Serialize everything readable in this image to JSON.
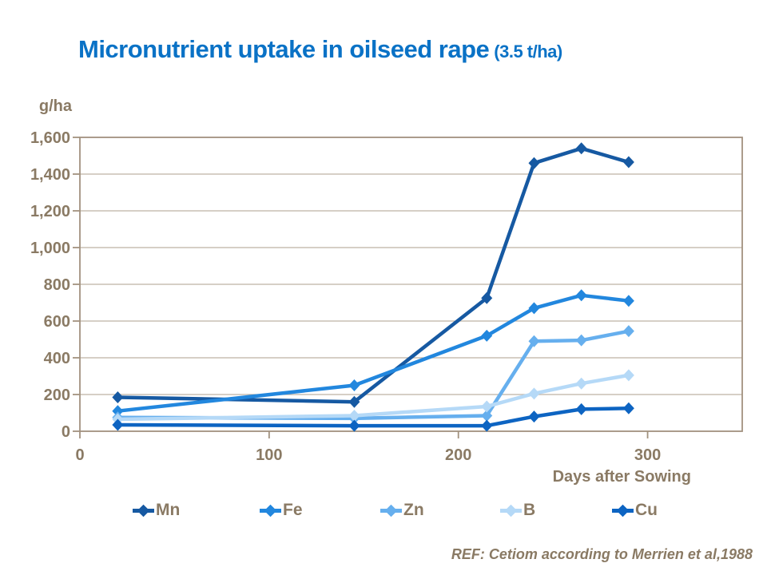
{
  "title": {
    "main": "Micronutrient uptake in oilseed rape",
    "suffix": "(3.5 t/ha)"
  },
  "ref_note": "REF: Cetiom according to Merrien et al,1988",
  "colors": {
    "title_blue": "#0A72C6",
    "label_brown": "#8A7A64",
    "axis": "#A2927F",
    "grid": "#BDB2A5",
    "background": "#FFFFFF"
  },
  "chart_data": {
    "type": "line",
    "title": "Micronutrient uptake in oilseed rape (3.5 t/ha)",
    "xlabel": "Days after Sowing",
    "ylabel": "g/ha",
    "xlim": [
      0,
      350
    ],
    "ylim": [
      0,
      1600
    ],
    "grid": true,
    "legend_position": "bottom",
    "marker": "diamond",
    "x": [
      20,
      145,
      215,
      240,
      265,
      290
    ],
    "x_ticks": [
      0,
      100,
      200,
      300
    ],
    "y_ticks": [
      0,
      200,
      400,
      600,
      800,
      1000,
      1200,
      1400,
      1600
    ],
    "y_tick_labels": [
      "0",
      "200",
      "400",
      "600",
      "800",
      "1,000",
      "1,200",
      "1,400",
      "1,600"
    ],
    "series": [
      {
        "name": "Mn",
        "color": "#1659A2",
        "values": [
          185,
          160,
          725,
          1460,
          1540,
          1465
        ]
      },
      {
        "name": "Fe",
        "color": "#2287DE",
        "values": [
          110,
          250,
          520,
          670,
          740,
          710
        ]
      },
      {
        "name": "Zn",
        "color": "#66AFEE",
        "values": [
          75,
          70,
          85,
          490,
          495,
          545
        ]
      },
      {
        "name": "B",
        "color": "#B5D9F7",
        "values": [
          65,
          85,
          135,
          205,
          260,
          305
        ]
      },
      {
        "name": "Cu",
        "color": "#0D64C2",
        "values": [
          35,
          30,
          30,
          80,
          120,
          125
        ]
      }
    ]
  }
}
